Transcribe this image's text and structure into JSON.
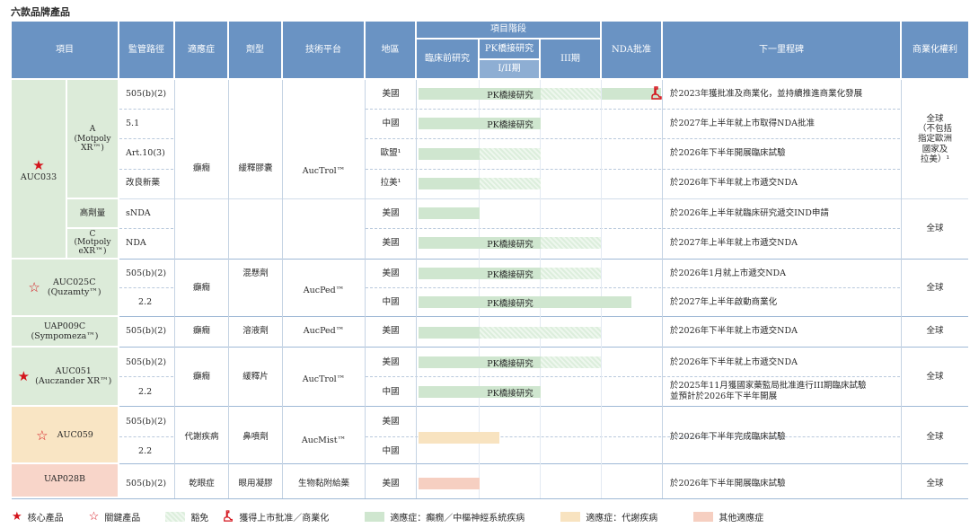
{
  "title": "六款品牌產品",
  "headers": {
    "project": "項目",
    "regulatory": "監管路徑",
    "indication": "適應症",
    "form": "劑型",
    "platform": "技術平台",
    "region": "地區",
    "stage": "項目階段",
    "preclinical": "臨床前研究",
    "pk": "PK橋接研究",
    "phase12": "I/II期",
    "phase3": "III期",
    "nda": "NDA批准",
    "milestone": "下一里程碑",
    "rights": "商業化權利"
  },
  "products": {
    "auc033": "AUC033",
    "auc033_a": "A\n(Motpoly\nXR™)",
    "auc033_hd": "高劑量",
    "auc033_c": "C\n(Motpoly\neXR™)",
    "auc025c": "AUC025C\n(Quzamty™)",
    "uap009c": "UAP009C\n(Sympomeza™)",
    "auc051": "AUC051\n(Auczander XR™)",
    "auc059": "AUC059",
    "uap028b": "UAP028B"
  },
  "regulatory": [
    "505(b)(2)",
    "5.1",
    "Art.10(3)",
    "改良新藥",
    "sNDA",
    "NDA",
    "505(b)(2)",
    "2.2",
    "505(b)(2)",
    "505(b)(2)",
    "2.2",
    "505(b)(2)",
    "2.2",
    "505(b)(2)"
  ],
  "indications": {
    "epilepsy1": "癲癇",
    "epilepsy2": "癲癇",
    "epilepsy3": "癲癇",
    "epilepsy4": "癲癇",
    "metabolic": "代謝疾病",
    "dryeye": "乾眼症"
  },
  "forms": {
    "f1": "緩釋膠囊",
    "f2": "混懸劑",
    "f3": "溶液劑",
    "f4": "緩釋片",
    "f5": "鼻噴劑",
    "f6": "眼用凝膠"
  },
  "platforms": {
    "p1": "AucTrol™",
    "p2": "AucPed™",
    "p3": "AucPed™",
    "p4": "AucTrol™",
    "p5": "AucMist™",
    "p6": "生物黏附給藥"
  },
  "regions": [
    "美國",
    "中國",
    "歐盟¹",
    "拉美¹",
    "美國",
    "美國",
    "美國",
    "中國",
    "美國",
    "美國",
    "中國",
    "美國",
    "中國",
    "美國"
  ],
  "bar_label": "PK橋接研究",
  "milestones": [
    "於2023年獲批准及商業化，並持續推進商業化發展",
    "於2027年上半年就上市取得NDA批准",
    "於2026年下半年開展臨床試驗",
    "於2026年下半年就上市遞交NDA",
    "於2026年上半年就臨床研究遞交IND申請",
    "於2027年上半年就上市遞交NDA",
    "於2026年1月就上市遞交NDA",
    "於2027年上半年啟動商業化",
    "於2026年下半年就上市遞交NDA",
    "於2026年下半年就上市遞交NDA",
    "於2025年11月獲國家藥監局批准進行III期臨床試驗\n並預計於2026年下半年開展",
    "於2026年下半年完成臨床試驗",
    "於2026年下半年開展臨床試驗"
  ],
  "rights": {
    "r1": "全球\n（不包括\n指定歐洲\n國家及\n拉美）¹",
    "r2": "全球",
    "r3": "全球",
    "r4": "全球",
    "r5": "全球",
    "r6": "全球",
    "r7": "全球"
  },
  "legend": {
    "core": "核心產品",
    "key": "關鍵產品",
    "exempt": "豁免",
    "approved": "獲得上市批准／商業化",
    "neuro": "適應症：癲癇／中樞神經系統疾病",
    "metabolic": "適應症：代謝疾病",
    "other": "其他適應症"
  },
  "colors": {
    "header": "#6a93c3",
    "green_group": "#dcebd9",
    "blue_group": "#d9e5f1",
    "orange_group": "#f9e5c4",
    "pink_group": "#f8d5c9",
    "star": "#d4141c"
  }
}
